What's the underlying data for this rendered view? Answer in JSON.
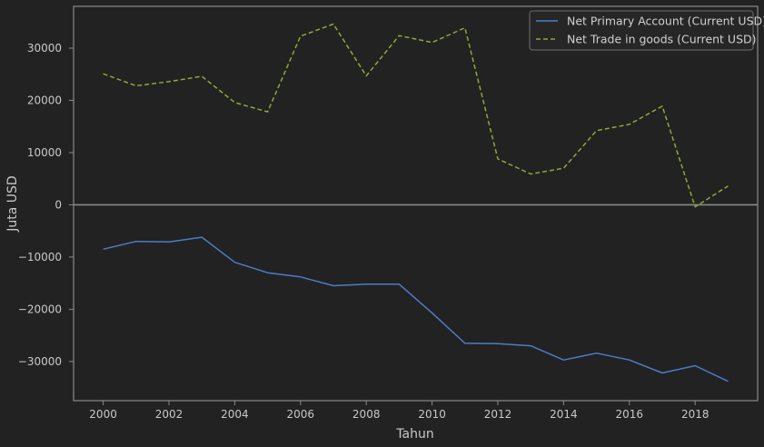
{
  "chart_data": {
    "type": "line",
    "title": "",
    "xlabel": "Tahun",
    "ylabel": "Juta USD",
    "x": [
      2000,
      2001,
      2002,
      2003,
      2004,
      2005,
      2006,
      2007,
      2008,
      2009,
      2010,
      2011,
      2012,
      2013,
      2014,
      2015,
      2016,
      2017,
      2018,
      2019
    ],
    "series": [
      {
        "name": "Net Primary Account (Current USD)",
        "color": "#4a7cc9",
        "style": "solid",
        "values": [
          -8500,
          -7000,
          -7100,
          -6200,
          -11000,
          -13000,
          -13800,
          -15500,
          -15200,
          -15200,
          -20700,
          -26500,
          -26600,
          -27000,
          -29700,
          -28400,
          -29700,
          -32200,
          -30800,
          -33800
        ]
      },
      {
        "name": "Net Trade in goods (Current USD)",
        "color": "#8aa83a",
        "style": "dashed",
        "values": [
          25100,
          22800,
          23600,
          24600,
          19600,
          17800,
          32300,
          34600,
          24700,
          32400,
          31100,
          33900,
          8800,
          5900,
          7000,
          14200,
          15400,
          18900,
          -400,
          3600
        ]
      }
    ],
    "xticks": [
      2000,
      2002,
      2004,
      2006,
      2008,
      2010,
      2012,
      2014,
      2016,
      2018
    ],
    "yticks": [
      -30000,
      -20000,
      -10000,
      0,
      10000,
      20000,
      30000
    ],
    "xlim": [
      1999.1,
      2019.9
    ],
    "ylim": [
      -37500,
      38000
    ],
    "zero_line": true,
    "grid": false,
    "legend_position": "top-right",
    "colors": {
      "background": "#222222",
      "axes": "#8a8a8a",
      "text": "#c8c8c8",
      "zero_line": "#8a8a8a"
    }
  }
}
